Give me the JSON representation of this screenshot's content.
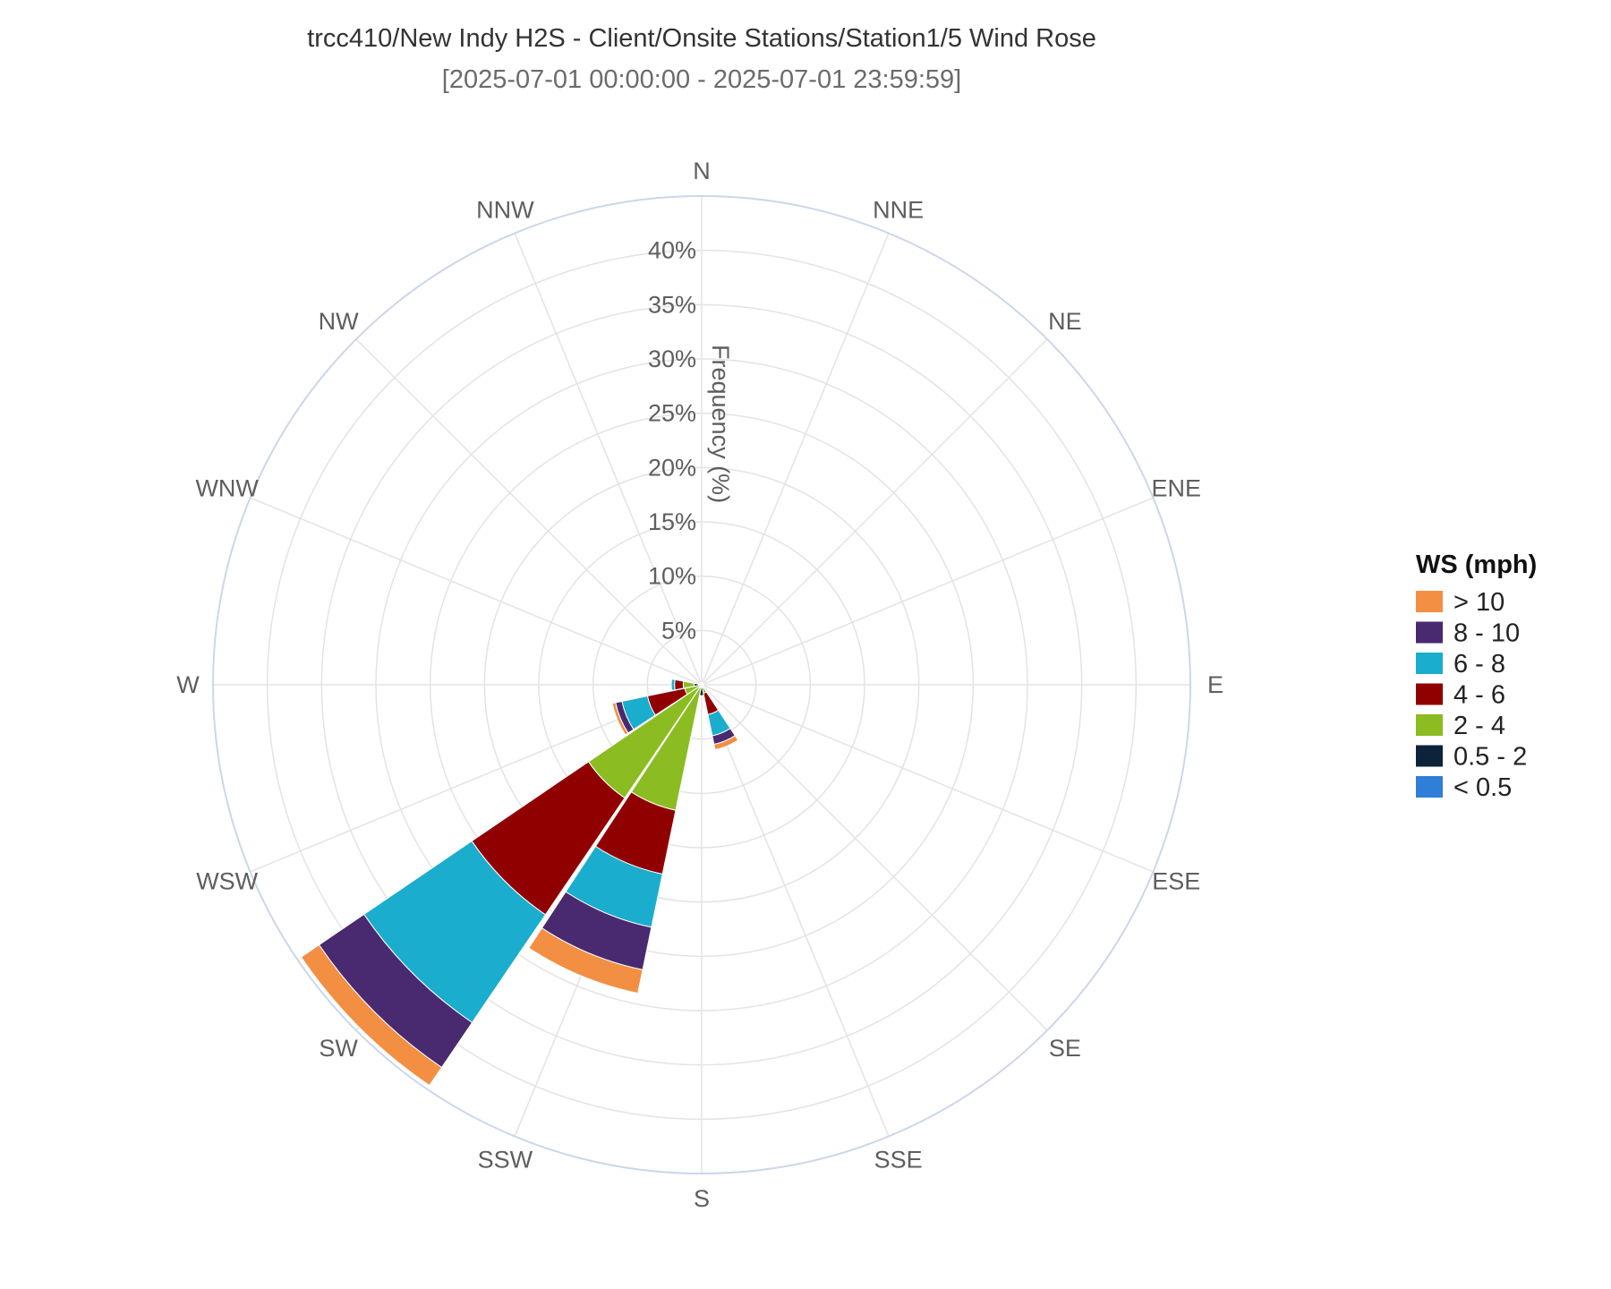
{
  "chart_data": {
    "type": "windrose",
    "title": "trcc410/New Indy H2S - Client/Onsite Stations/Station1/5 Wind Rose",
    "subtitle": "[2025-07-01 00:00:00 - 2025-07-01 23:59:59]",
    "radial_axis_title": "Frequency (%)",
    "radial_ticks": [
      "5%",
      "10%",
      "15%",
      "20%",
      "25%",
      "30%",
      "35%",
      "40%"
    ],
    "radial_range": [
      0,
      45
    ],
    "directions": [
      "N",
      "NNE",
      "NE",
      "ENE",
      "E",
      "ESE",
      "SE",
      "SSE",
      "S",
      "SSW",
      "SW",
      "WSW",
      "W",
      "WNW",
      "NW",
      "NNW"
    ],
    "legend_title": "WS (mph)",
    "legend_position": "right",
    "series": [
      {
        "name": "< 0.5",
        "color": "#2f7ed8",
        "values": [
          0,
          0,
          0,
          0,
          0,
          0,
          0,
          0,
          0,
          0,
          0,
          0,
          0.3,
          0,
          0,
          0
        ]
      },
      {
        "name": "0.5 - 2",
        "color": "#0d233a",
        "values": [
          0.2,
          0.2,
          0.2,
          0,
          0.2,
          0,
          0.3,
          0.2,
          1.0,
          0.3,
          0.3,
          0,
          0.4,
          0.2,
          0.2,
          0.2
        ]
      },
      {
        "name": "2 - 4",
        "color": "#8bbc21",
        "values": [
          0,
          0,
          0,
          0,
          0,
          0,
          0,
          0.6,
          0,
          11.5,
          12.3,
          1.6,
          1.0,
          0,
          0,
          0
        ]
      },
      {
        "name": "4 - 6",
        "color": "#910000",
        "values": [
          0,
          0,
          0,
          0,
          0,
          0,
          0,
          2.0,
          0,
          6.0,
          13.0,
          3.5,
          0.8,
          0,
          0,
          0
        ]
      },
      {
        "name": "6 - 8",
        "color": "#1aadce",
        "values": [
          0,
          0,
          0,
          0,
          0,
          0,
          0,
          2.0,
          0,
          5.0,
          12.0,
          2.4,
          0.3,
          0,
          0,
          0
        ]
      },
      {
        "name": "8 - 10",
        "color": "#492970",
        "values": [
          0,
          0,
          0,
          0,
          0,
          0,
          0,
          0.8,
          0,
          4.0,
          5.0,
          0.6,
          0,
          0,
          0,
          0
        ]
      },
      {
        "name": "> 10",
        "color": "#f28f43",
        "values": [
          0,
          0,
          0,
          0,
          0,
          0,
          0,
          0.5,
          0,
          2.2,
          2.0,
          0.3,
          0,
          0,
          0,
          0
        ]
      }
    ]
  }
}
